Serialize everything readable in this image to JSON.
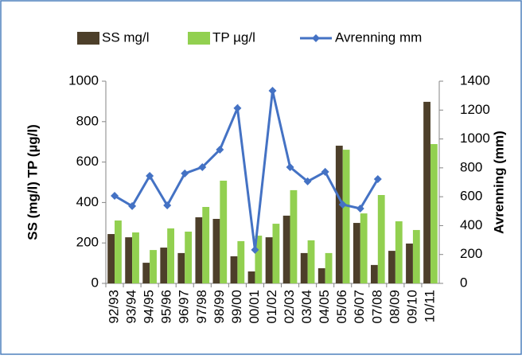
{
  "chart_data": {
    "type": "bar_line",
    "categories": [
      "92/93",
      "93/94",
      "94/95",
      "95/96",
      "96/97",
      "97/98",
      "98/99",
      "99/00",
      "00/01",
      "01/02",
      "02/03",
      "03/04",
      "04/05",
      "05/06",
      "06/07",
      "07/08",
      "08/09",
      "09/10",
      "10/11"
    ],
    "series": [
      {
        "name": "SS mg/l",
        "type": "bar",
        "color": "#4d3f2a",
        "values": [
          244,
          228,
          102,
          177,
          150,
          327,
          319,
          134,
          59,
          228,
          335,
          150,
          75,
          681,
          299,
          91,
          161,
          197,
          898
        ]
      },
      {
        "name": "TP µg/l",
        "type": "bar",
        "color": "#92d050",
        "values": [
          311,
          252,
          165,
          272,
          256,
          378,
          508,
          209,
          236,
          295,
          461,
          213,
          150,
          661,
          346,
          437,
          307,
          264,
          689
        ]
      },
      {
        "name": "Avrenning mm",
        "type": "line",
        "axis": "y2",
        "color": "#4472c4",
        "values": [
          606,
          535,
          744,
          540,
          761,
          805,
          926,
          1213,
          232,
          1334,
          805,
          706,
          772,
          546,
          518,
          722,
          null,
          null,
          null
        ]
      }
    ],
    "y_label": "SS (mg/l) TP (µg/l)",
    "y2_label": "Avrenning (mm)",
    "ylim": [
      0,
      1000
    ],
    "yticks": [
      0,
      200,
      400,
      600,
      800,
      1000
    ],
    "y2lim": [
      0,
      1400
    ],
    "y2ticks": [
      0,
      200,
      400,
      600,
      800,
      1000,
      1200,
      1400
    ],
    "legend": "top",
    "grid": false
  }
}
